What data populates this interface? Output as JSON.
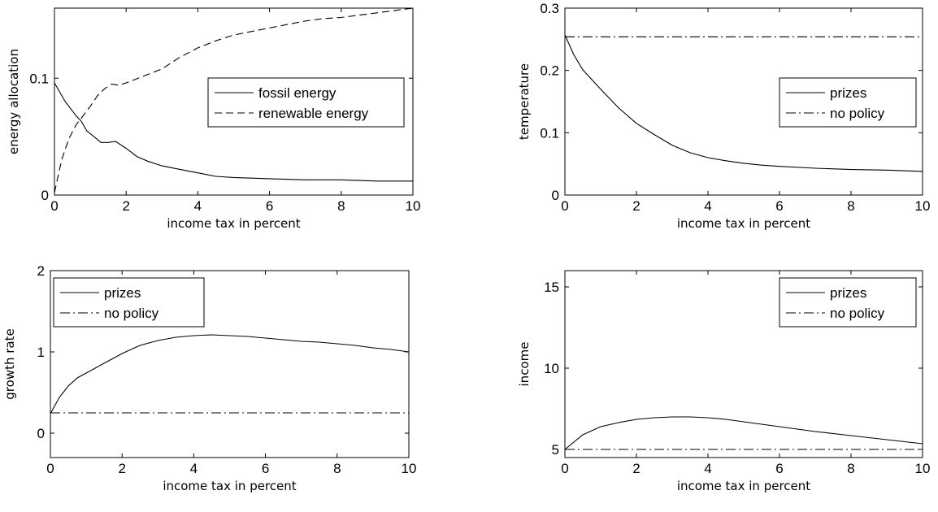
{
  "chart_data": [
    {
      "type": "line",
      "xlabel": "income tax in percent",
      "ylabel": "energy allocation",
      "xlim": [
        0,
        10
      ],
      "ylim": [
        0,
        0.16
      ],
      "xticks": [
        0,
        2,
        4,
        6,
        8,
        10
      ],
      "yticks": [
        0,
        0.1
      ],
      "ytick_labels": [
        "0",
        "0.1"
      ],
      "legend_position": "center-right",
      "series": [
        {
          "name": "fossil energy",
          "style": "solid",
          "x": [
            0,
            0.3,
            0.6,
            0.75,
            0.9,
            1.1,
            1.3,
            1.5,
            1.7,
            2,
            2.3,
            2.6,
            3,
            3.5,
            4,
            4.5,
            5,
            6,
            7,
            8,
            9,
            10
          ],
          "y": [
            0.096,
            0.08,
            0.068,
            0.063,
            0.055,
            0.05,
            0.045,
            0.045,
            0.046,
            0.04,
            0.033,
            0.029,
            0.025,
            0.022,
            0.019,
            0.016,
            0.015,
            0.014,
            0.013,
            0.013,
            0.012,
            0.012
          ]
        },
        {
          "name": "renewable energy",
          "style": "dashed",
          "x": [
            0,
            0.2,
            0.4,
            0.6,
            0.8,
            1,
            1.2,
            1.4,
            1.6,
            1.8,
            2,
            2.5,
            3,
            3.5,
            4,
            4.5,
            5,
            5.5,
            6,
            6.5,
            7,
            7.5,
            8,
            8.5,
            9,
            9.5,
            10
          ],
          "y": [
            0.002,
            0.03,
            0.048,
            0.06,
            0.068,
            0.076,
            0.085,
            0.091,
            0.095,
            0.094,
            0.096,
            0.102,
            0.108,
            0.118,
            0.126,
            0.132,
            0.137,
            0.14,
            0.143,
            0.146,
            0.149,
            0.151,
            0.152,
            0.154,
            0.156,
            0.158,
            0.16
          ]
        }
      ]
    },
    {
      "type": "line",
      "xlabel": "income tax in percent",
      "ylabel": "temperature",
      "xlim": [
        0,
        10
      ],
      "ylim": [
        0,
        0.3
      ],
      "xticks": [
        0,
        2,
        4,
        6,
        8,
        10
      ],
      "yticks": [
        0,
        0.1,
        0.2,
        0.3
      ],
      "ytick_labels": [
        "0",
        "0.1",
        "0.2",
        "0.3"
      ],
      "legend_position": "center-right",
      "series": [
        {
          "name": "prizes",
          "style": "solid",
          "x": [
            0,
            0.25,
            0.5,
            1,
            1.5,
            2,
            2.5,
            3,
            3.5,
            4,
            4.5,
            5,
            5.5,
            6,
            7,
            8,
            9,
            10
          ],
          "y": [
            0.257,
            0.225,
            0.201,
            0.17,
            0.14,
            0.115,
            0.097,
            0.08,
            0.068,
            0.06,
            0.055,
            0.051,
            0.048,
            0.046,
            0.043,
            0.041,
            0.04,
            0.038
          ]
        },
        {
          "name": "no policy",
          "style": "dashdot",
          "x": [
            0,
            10
          ],
          "y": [
            0.254,
            0.254
          ]
        }
      ]
    },
    {
      "type": "line",
      "xlabel": "income tax in percent",
      "ylabel": "growth rate",
      "xlim": [
        0,
        10
      ],
      "ylim": [
        -0.3,
        2
      ],
      "xticks": [
        0,
        2,
        4,
        6,
        8,
        10
      ],
      "yticks": [
        0,
        1,
        2
      ],
      "ytick_labels": [
        "0",
        "1",
        "2"
      ],
      "legend_position": "top-left",
      "series": [
        {
          "name": "prizes",
          "style": "solid",
          "x": [
            0,
            0.25,
            0.5,
            0.75,
            1,
            1.5,
            2,
            2.5,
            3,
            3.5,
            4,
            4.5,
            5,
            5.5,
            6,
            6.5,
            7,
            7.5,
            8,
            8.5,
            9,
            9.5,
            10
          ],
          "y": [
            0.24,
            0.44,
            0.58,
            0.68,
            0.74,
            0.86,
            0.98,
            1.08,
            1.14,
            1.18,
            1.2,
            1.21,
            1.2,
            1.19,
            1.17,
            1.15,
            1.13,
            1.12,
            1.1,
            1.08,
            1.05,
            1.03,
            1.0
          ]
        },
        {
          "name": "no policy",
          "style": "dashdot",
          "x": [
            0,
            10
          ],
          "y": [
            0.25,
            0.25
          ]
        }
      ]
    },
    {
      "type": "line",
      "xlabel": "income tax in percent",
      "ylabel": "income",
      "xlim": [
        0,
        10
      ],
      "ylim": [
        4.5,
        16
      ],
      "xticks": [
        0,
        2,
        4,
        6,
        8,
        10
      ],
      "yticks": [
        5,
        10,
        15
      ],
      "ytick_labels": [
        "5",
        "10",
        "15"
      ],
      "legend_position": "top-right",
      "series": [
        {
          "name": "prizes",
          "style": "solid",
          "x": [
            0,
            0.5,
            1,
            1.5,
            2,
            2.5,
            3,
            3.5,
            4,
            4.5,
            5,
            6,
            7,
            8,
            9,
            10
          ],
          "y": [
            5.0,
            5.9,
            6.4,
            6.65,
            6.85,
            6.95,
            7.0,
            7.0,
            6.95,
            6.85,
            6.7,
            6.4,
            6.1,
            5.85,
            5.6,
            5.35
          ]
        },
        {
          "name": "no policy",
          "style": "dashdot",
          "x": [
            0,
            10
          ],
          "y": [
            5.0,
            5.0
          ]
        }
      ]
    }
  ]
}
